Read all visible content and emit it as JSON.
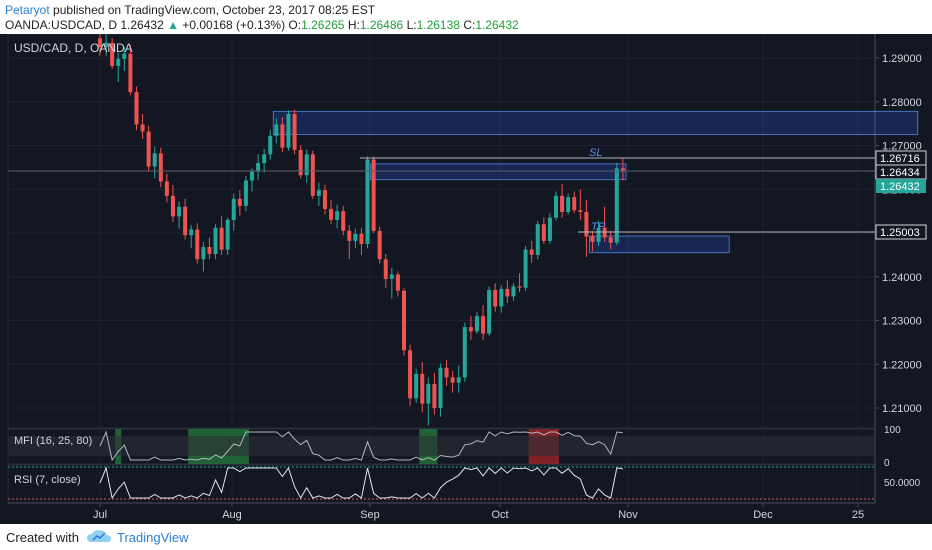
{
  "header": {
    "author": "Petaryot",
    "published_text": "published on TradingView.com, October 23, 2017 08:25 EST",
    "symbol": "OANDA:USDCAD, D",
    "last": "1.26432",
    "change_arrow": "▲",
    "change": "+0.00168 (+0.13%)",
    "open_label": "O:",
    "open": "1.26265",
    "high_label": "H:",
    "high": "1.26486",
    "low_label": "L:",
    "low": "1.26138",
    "close_label": "C:",
    "close": "1.26432"
  },
  "chart": {
    "legend": "USD/CAD, D, OANDA",
    "sl_label": "SL",
    "tp_label": "TP",
    "mfi_label": "MFI (16, 25, 80)",
    "rsi_label": "RSI (7, close)",
    "colors": {
      "up": "#26a69a",
      "down": "#ef5350",
      "bg": "#131722",
      "zone": "#2962ff",
      "text": "#d1d4dc"
    }
  },
  "chart_data": {
    "type": "candlestick",
    "price_axis_ticks": [
      "1.29000",
      "1.28000",
      "1.27000",
      "1.26000",
      "1.25000",
      "1.24000",
      "1.23000",
      "1.22000",
      "1.21000"
    ],
    "price_labels": {
      "sl": "1.26716",
      "entry": "1.26434",
      "last": "1.26432",
      "tp": "1.25003"
    },
    "mfi_axis_ticks": [
      "100",
      "0"
    ],
    "rsi_axis_ticks": [
      "50.0000"
    ],
    "time_axis_ticks": [
      "Jul",
      "Aug",
      "Sep",
      "Oct",
      "Nov",
      "Dec",
      "25"
    ],
    "candles": [
      [
        1.2945,
        1.2968,
        1.2905,
        1.2925
      ],
      [
        1.2925,
        1.2955,
        1.2905,
        1.2935
      ],
      [
        1.2935,
        1.2945,
        1.2875,
        1.2882
      ],
      [
        1.2882,
        1.2912,
        1.2845,
        1.2898
      ],
      [
        1.2898,
        1.2925,
        1.287,
        1.291
      ],
      [
        1.291,
        1.293,
        1.2815,
        1.2822
      ],
      [
        1.2822,
        1.2835,
        1.2735,
        1.2748
      ],
      [
        1.2748,
        1.2772,
        1.2715,
        1.2732
      ],
      [
        1.2732,
        1.2745,
        1.264,
        1.2652
      ],
      [
        1.2652,
        1.2698,
        1.2625,
        1.2682
      ],
      [
        1.2682,
        1.2695,
        1.2605,
        1.2618
      ],
      [
        1.2618,
        1.2635,
        1.257,
        1.2585
      ],
      [
        1.2585,
        1.261,
        1.2525,
        1.2538
      ],
      [
        1.2538,
        1.2572,
        1.251,
        1.256
      ],
      [
        1.256,
        1.2578,
        1.2485,
        1.2495
      ],
      [
        1.2495,
        1.2518,
        1.2465,
        1.2508
      ],
      [
        1.2508,
        1.2522,
        1.243,
        1.244
      ],
      [
        1.244,
        1.248,
        1.2412,
        1.2468
      ],
      [
        1.2468,
        1.249,
        1.244,
        1.2452
      ],
      [
        1.2452,
        1.252,
        1.244,
        1.2512
      ],
      [
        1.2512,
        1.2538,
        1.245,
        1.2462
      ],
      [
        1.2462,
        1.2535,
        1.245,
        1.253
      ],
      [
        1.253,
        1.259,
        1.2505,
        1.2578
      ],
      [
        1.2578,
        1.2598,
        1.254,
        1.2562
      ],
      [
        1.2562,
        1.263,
        1.255,
        1.262
      ],
      [
        1.262,
        1.2648,
        1.2595,
        1.264
      ],
      [
        1.264,
        1.268,
        1.2622,
        1.266
      ],
      [
        1.266,
        1.2692,
        1.2638,
        1.268
      ],
      [
        1.268,
        1.2735,
        1.2668,
        1.2722
      ],
      [
        1.2722,
        1.2762,
        1.2705,
        1.2748
      ],
      [
        1.2748,
        1.2765,
        1.2685,
        1.2695
      ],
      [
        1.2695,
        1.278,
        1.2688,
        1.2772
      ],
      [
        1.2772,
        1.2782,
        1.268,
        1.269
      ],
      [
        1.269,
        1.27,
        1.2625,
        1.2632
      ],
      [
        1.2632,
        1.269,
        1.2615,
        1.268
      ],
      [
        1.268,
        1.2688,
        1.2578,
        1.2585
      ],
      [
        1.2585,
        1.2615,
        1.2562,
        1.2598
      ],
      [
        1.2598,
        1.261,
        1.2542,
        1.2555
      ],
      [
        1.2555,
        1.2575,
        1.252,
        1.253
      ],
      [
        1.253,
        1.2565,
        1.251,
        1.255
      ],
      [
        1.255,
        1.2562,
        1.2495,
        1.2505
      ],
      [
        1.2505,
        1.2518,
        1.244,
        1.2482
      ],
      [
        1.2482,
        1.251,
        1.2465,
        1.2498
      ],
      [
        1.2498,
        1.2512,
        1.245,
        1.2475
      ],
      [
        1.2475,
        1.2675,
        1.2465,
        1.2668
      ],
      [
        1.2668,
        1.2675,
        1.25,
        1.2505
      ],
      [
        1.2505,
        1.2515,
        1.243,
        1.244
      ],
      [
        1.244,
        1.2452,
        1.2375,
        1.2395
      ],
      [
        1.2395,
        1.242,
        1.235,
        1.2405
      ],
      [
        1.2405,
        1.2412,
        1.2355,
        1.2368
      ],
      [
        1.2368,
        1.2375,
        1.222,
        1.2232
      ],
      [
        1.2232,
        1.2245,
        1.2105,
        1.2122
      ],
      [
        1.2122,
        1.219,
        1.2112,
        1.2178
      ],
      [
        1.2178,
        1.2205,
        1.209,
        1.211
      ],
      [
        1.211,
        1.217,
        1.206,
        1.2155
      ],
      [
        1.2155,
        1.218,
        1.2085,
        1.21
      ],
      [
        1.21,
        1.2202,
        1.208,
        1.2192
      ],
      [
        1.2192,
        1.221,
        1.215,
        1.217
      ],
      [
        1.217,
        1.2185,
        1.2135,
        1.2158
      ],
      [
        1.2158,
        1.2196,
        1.2135,
        1.217
      ],
      [
        1.217,
        1.2295,
        1.216,
        1.2285
      ],
      [
        1.2285,
        1.231,
        1.2255,
        1.2275
      ],
      [
        1.2275,
        1.232,
        1.227,
        1.231
      ],
      [
        1.231,
        1.2335,
        1.2255,
        1.227
      ],
      [
        1.227,
        1.2378,
        1.2265,
        1.237
      ],
      [
        1.237,
        1.2385,
        1.232,
        1.2332
      ],
      [
        1.2332,
        1.238,
        1.2318,
        1.2372
      ],
      [
        1.2372,
        1.2392,
        1.234,
        1.2355
      ],
      [
        1.2355,
        1.2385,
        1.2345,
        1.2378
      ],
      [
        1.2378,
        1.2408,
        1.2365,
        1.2375
      ],
      [
        1.2375,
        1.247,
        1.2368,
        1.2462
      ],
      [
        1.2462,
        1.2482,
        1.2432,
        1.245
      ],
      [
        1.245,
        1.2528,
        1.244,
        1.252
      ],
      [
        1.252,
        1.2535,
        1.2475,
        1.2482
      ],
      [
        1.2482,
        1.2545,
        1.2475,
        1.2535
      ],
      [
        1.2535,
        1.2595,
        1.2528,
        1.2585
      ],
      [
        1.2585,
        1.2612,
        1.2535,
        1.2548
      ],
      [
        1.2548,
        1.259,
        1.2542,
        1.2582
      ],
      [
        1.2582,
        1.2595,
        1.2545,
        1.2552
      ],
      [
        1.2552,
        1.26,
        1.253,
        1.2548
      ],
      [
        1.2548,
        1.2575,
        1.2445,
        1.2492
      ],
      [
        1.2492,
        1.2505,
        1.2458,
        1.248
      ],
      [
        1.248,
        1.2528,
        1.247,
        1.2512
      ],
      [
        1.2512,
        1.256,
        1.248,
        1.249
      ],
      [
        1.249,
        1.2505,
        1.2462,
        1.2478
      ],
      [
        1.2478,
        1.266,
        1.2472,
        1.2648
      ],
      [
        1.2648,
        1.267,
        1.262,
        1.2643
      ]
    ],
    "zones": [
      {
        "from_bar": 29,
        "to_bar": 134,
        "top": 1.2778,
        "bottom": 1.2725
      },
      {
        "from_bar": 45,
        "to_bar": 86,
        "top": 1.2658,
        "bottom": 1.2622
      },
      {
        "from_bar": 81,
        "to_bar": 103,
        "top": 1.2493,
        "bottom": 1.2455
      }
    ],
    "mfi_shading": [
      {
        "from_bar": 3,
        "to_bar": 3,
        "color": "green"
      },
      {
        "from_bar": 15,
        "to_bar": 24,
        "color": "green"
      },
      {
        "from_bar": 53,
        "to_bar": 55,
        "color": "green"
      },
      {
        "from_bar": 71,
        "to_bar": 75,
        "color": "red"
      }
    ]
  }
}
